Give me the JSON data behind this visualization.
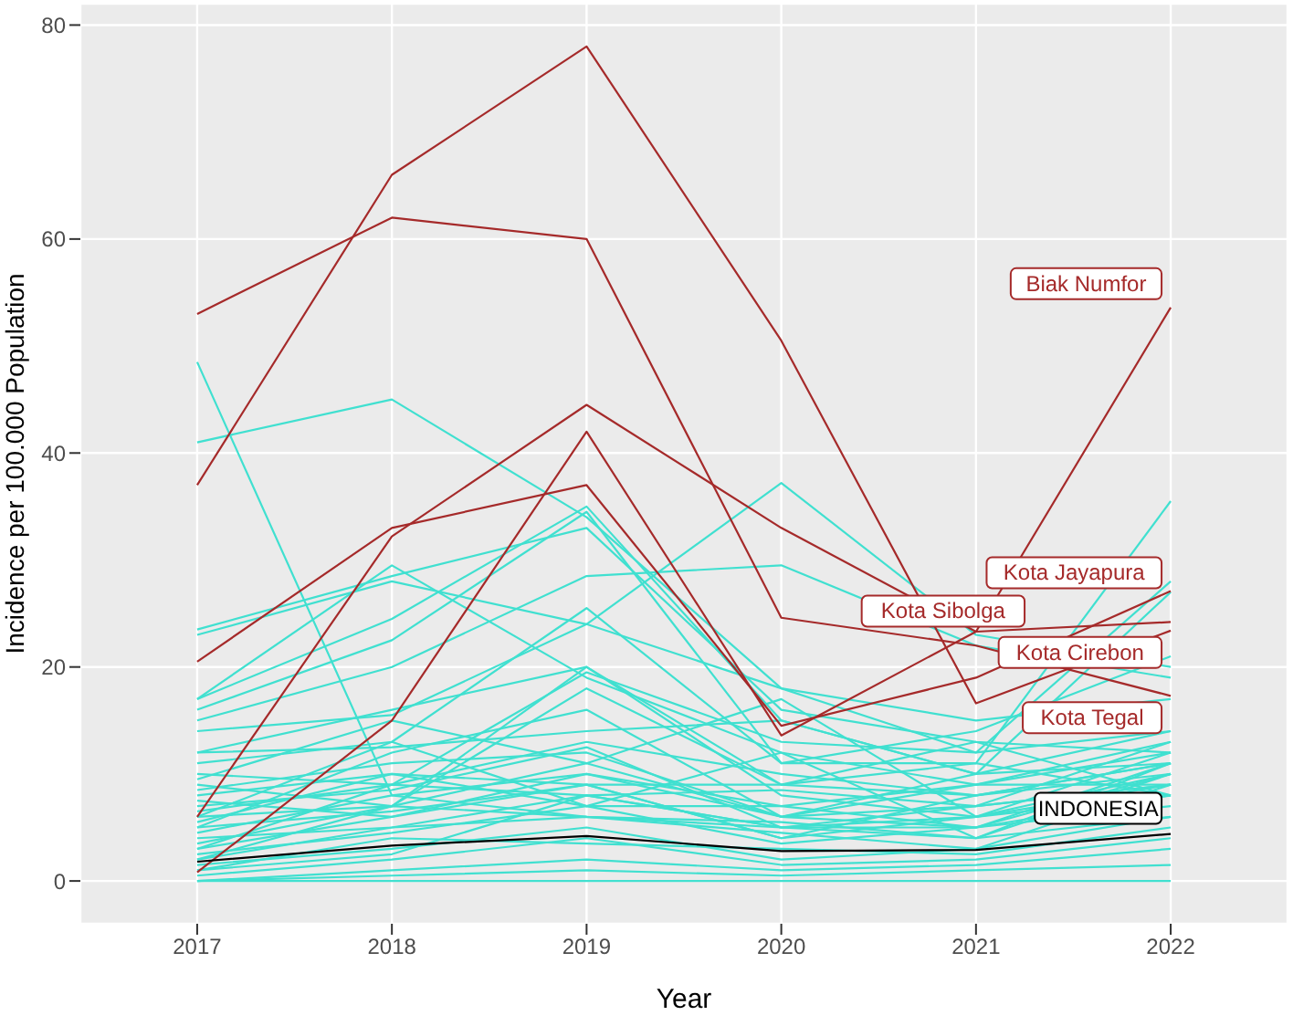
{
  "chart_data": {
    "type": "line",
    "xlabel": "Year",
    "ylabel": "Incidence per 100.000 Population",
    "x": [
      2017,
      2018,
      2019,
      2020,
      2021,
      2022
    ],
    "xlim": [
      2016.4,
      2022.6
    ],
    "xticks": [
      2017,
      2018,
      2019,
      2020,
      2021,
      2022
    ],
    "ylim": [
      -4,
      82
    ],
    "yticks": [
      0,
      20,
      40,
      60,
      80
    ],
    "grid": true,
    "legend": false,
    "marker": "none",
    "line_style": "solid",
    "series": [
      {
        "color": "#40e0d0",
        "values": [
          48.5,
          8,
          6,
          5,
          4,
          6
        ]
      },
      {
        "color": "#40e0d0",
        "values": [
          41,
          45,
          34,
          18,
          12,
          14
        ]
      },
      {
        "color": "#40e0d0",
        "values": [
          23.5,
          28.5,
          33,
          16,
          13,
          12
        ]
      },
      {
        "color": "#40e0d0",
        "values": [
          23,
          28,
          24,
          37.2,
          23,
          20
        ]
      },
      {
        "color": "#40e0d0",
        "values": [
          17,
          24.5,
          35,
          15,
          10,
          14
        ]
      },
      {
        "color": "#40e0d0",
        "values": [
          17,
          29.5,
          19,
          12,
          9,
          13
        ]
      },
      {
        "color": "#40e0d0",
        "values": [
          16,
          22.5,
          34.5,
          11,
          11,
          35.5
        ]
      },
      {
        "color": "#40e0d0",
        "values": [
          15,
          20,
          28.5,
          29.5,
          22,
          19
        ]
      },
      {
        "color": "#40e0d0",
        "values": [
          14,
          15.5,
          24,
          18,
          15,
          17
        ]
      },
      {
        "color": "#40e0d0",
        "values": [
          12,
          16,
          20,
          9,
          8,
          11
        ]
      },
      {
        "color": "#40e0d0",
        "values": [
          12,
          12.5,
          14,
          15,
          10,
          27
        ]
      },
      {
        "color": "#40e0d0",
        "values": [
          11,
          13,
          25.5,
          11,
          14,
          21
        ]
      },
      {
        "color": "#40e0d0",
        "values": [
          10,
          9,
          19.5,
          13,
          12,
          28
        ]
      },
      {
        "color": "#40e0d0",
        "values": [
          9.5,
          15,
          11,
          17,
          6,
          9
        ]
      },
      {
        "color": "#40e0d0",
        "values": [
          9,
          7,
          20,
          8,
          6,
          10
        ]
      },
      {
        "color": "#40e0d0",
        "values": [
          8.5,
          11,
          12,
          6,
          7,
          13
        ]
      },
      {
        "color": "#40e0d0",
        "values": [
          8,
          10,
          9,
          9,
          11,
          8
        ]
      },
      {
        "color": "#40e0d0",
        "values": [
          7.5,
          6,
          10,
          7,
          9,
          12
        ]
      },
      {
        "color": "#40e0d0",
        "values": [
          7,
          8.5,
          12.5,
          5,
          5,
          10
        ]
      },
      {
        "color": "#40e0d0",
        "values": [
          6.5,
          9,
          8,
          8.5,
          7,
          9
        ]
      },
      {
        "color": "#40e0d0",
        "values": [
          6,
          7,
          11,
          6,
          10,
          11
        ]
      },
      {
        "color": "#40e0d0",
        "values": [
          5.5,
          10,
          7,
          7,
          5,
          8
        ]
      },
      {
        "color": "#40e0d0",
        "values": [
          5,
          6.5,
          9,
          4,
          8,
          10
        ]
      },
      {
        "color": "#40e0d0",
        "values": [
          4.5,
          8,
          10,
          6,
          5,
          11
        ]
      },
      {
        "color": "#40e0d0",
        "values": [
          4,
          5,
          8,
          5,
          7,
          9
        ]
      },
      {
        "color": "#40e0d0",
        "values": [
          3.5,
          7,
          6,
          5.5,
          4,
          10
        ]
      },
      {
        "color": "#40e0d0",
        "values": [
          3,
          6,
          9,
          4,
          6,
          8
        ]
      },
      {
        "color": "#40e0d0",
        "values": [
          2.5,
          4.5,
          7,
          3.5,
          5,
          7
        ]
      },
      {
        "color": "#40e0d0",
        "values": [
          2,
          5,
          6,
          4.5,
          3,
          9
        ]
      },
      {
        "color": "#40e0d0",
        "values": [
          1.5,
          3,
          5,
          2,
          3,
          6
        ]
      },
      {
        "color": "#40e0d0",
        "values": [
          1,
          4,
          3.5,
          3,
          2.5,
          5
        ]
      },
      {
        "color": "#40e0d0",
        "values": [
          0.5,
          2,
          4,
          1.5,
          2,
          4
        ]
      },
      {
        "color": "#40e0d0",
        "values": [
          0,
          1,
          2,
          1,
          1.5,
          3
        ]
      },
      {
        "color": "#40e0d0",
        "values": [
          0,
          0.5,
          1,
          0.5,
          1,
          1.5
        ]
      },
      {
        "color": "#40e0d0",
        "values": [
          0,
          0,
          0,
          0,
          0,
          0
        ]
      },
      {
        "color": "#40e0d0",
        "values": [
          3,
          9,
          13,
          10,
          8,
          11
        ]
      },
      {
        "color": "#40e0d0",
        "values": [
          5,
          12,
          16,
          6,
          9,
          9
        ]
      },
      {
        "color": "#40e0d0",
        "values": [
          2,
          7,
          18,
          9,
          13,
          8
        ]
      },
      {
        "color": "#40e0d0",
        "values": [
          6,
          13,
          7,
          12,
          4,
          11
        ]
      },
      {
        "color": "#40e0d0",
        "values": [
          1,
          2.5,
          8,
          5,
          6,
          12
        ]
      },
      {
        "name": "Biak Numfor",
        "color": "#a52a2a",
        "values": [
          0.8,
          15,
          42,
          13.6,
          23.3,
          53.6
        ]
      },
      {
        "name": "Kota Jayapura",
        "color": "#a52a2a",
        "values": [
          20.5,
          33,
          37,
          14.5,
          19,
          27.1
        ]
      },
      {
        "name": "Kota Sibolga",
        "color": "#a52a2a",
        "values": [
          6,
          32.2,
          44.5,
          33,
          23.3,
          24.2
        ]
      },
      {
        "name": "Kota Cirebon",
        "color": "#a52a2a",
        "values": [
          37,
          66,
          78,
          50.5,
          16.6,
          23.4
        ]
      },
      {
        "name": "Kota Tegal",
        "color": "#a52a2a",
        "values": [
          53,
          62,
          60,
          24.6,
          22,
          17.3
        ]
      },
      {
        "name": "INDONESIA",
        "color": "#000000",
        "values": [
          1.8,
          3.3,
          4.2,
          2.8,
          2.9,
          4.4
        ]
      }
    ]
  }
}
